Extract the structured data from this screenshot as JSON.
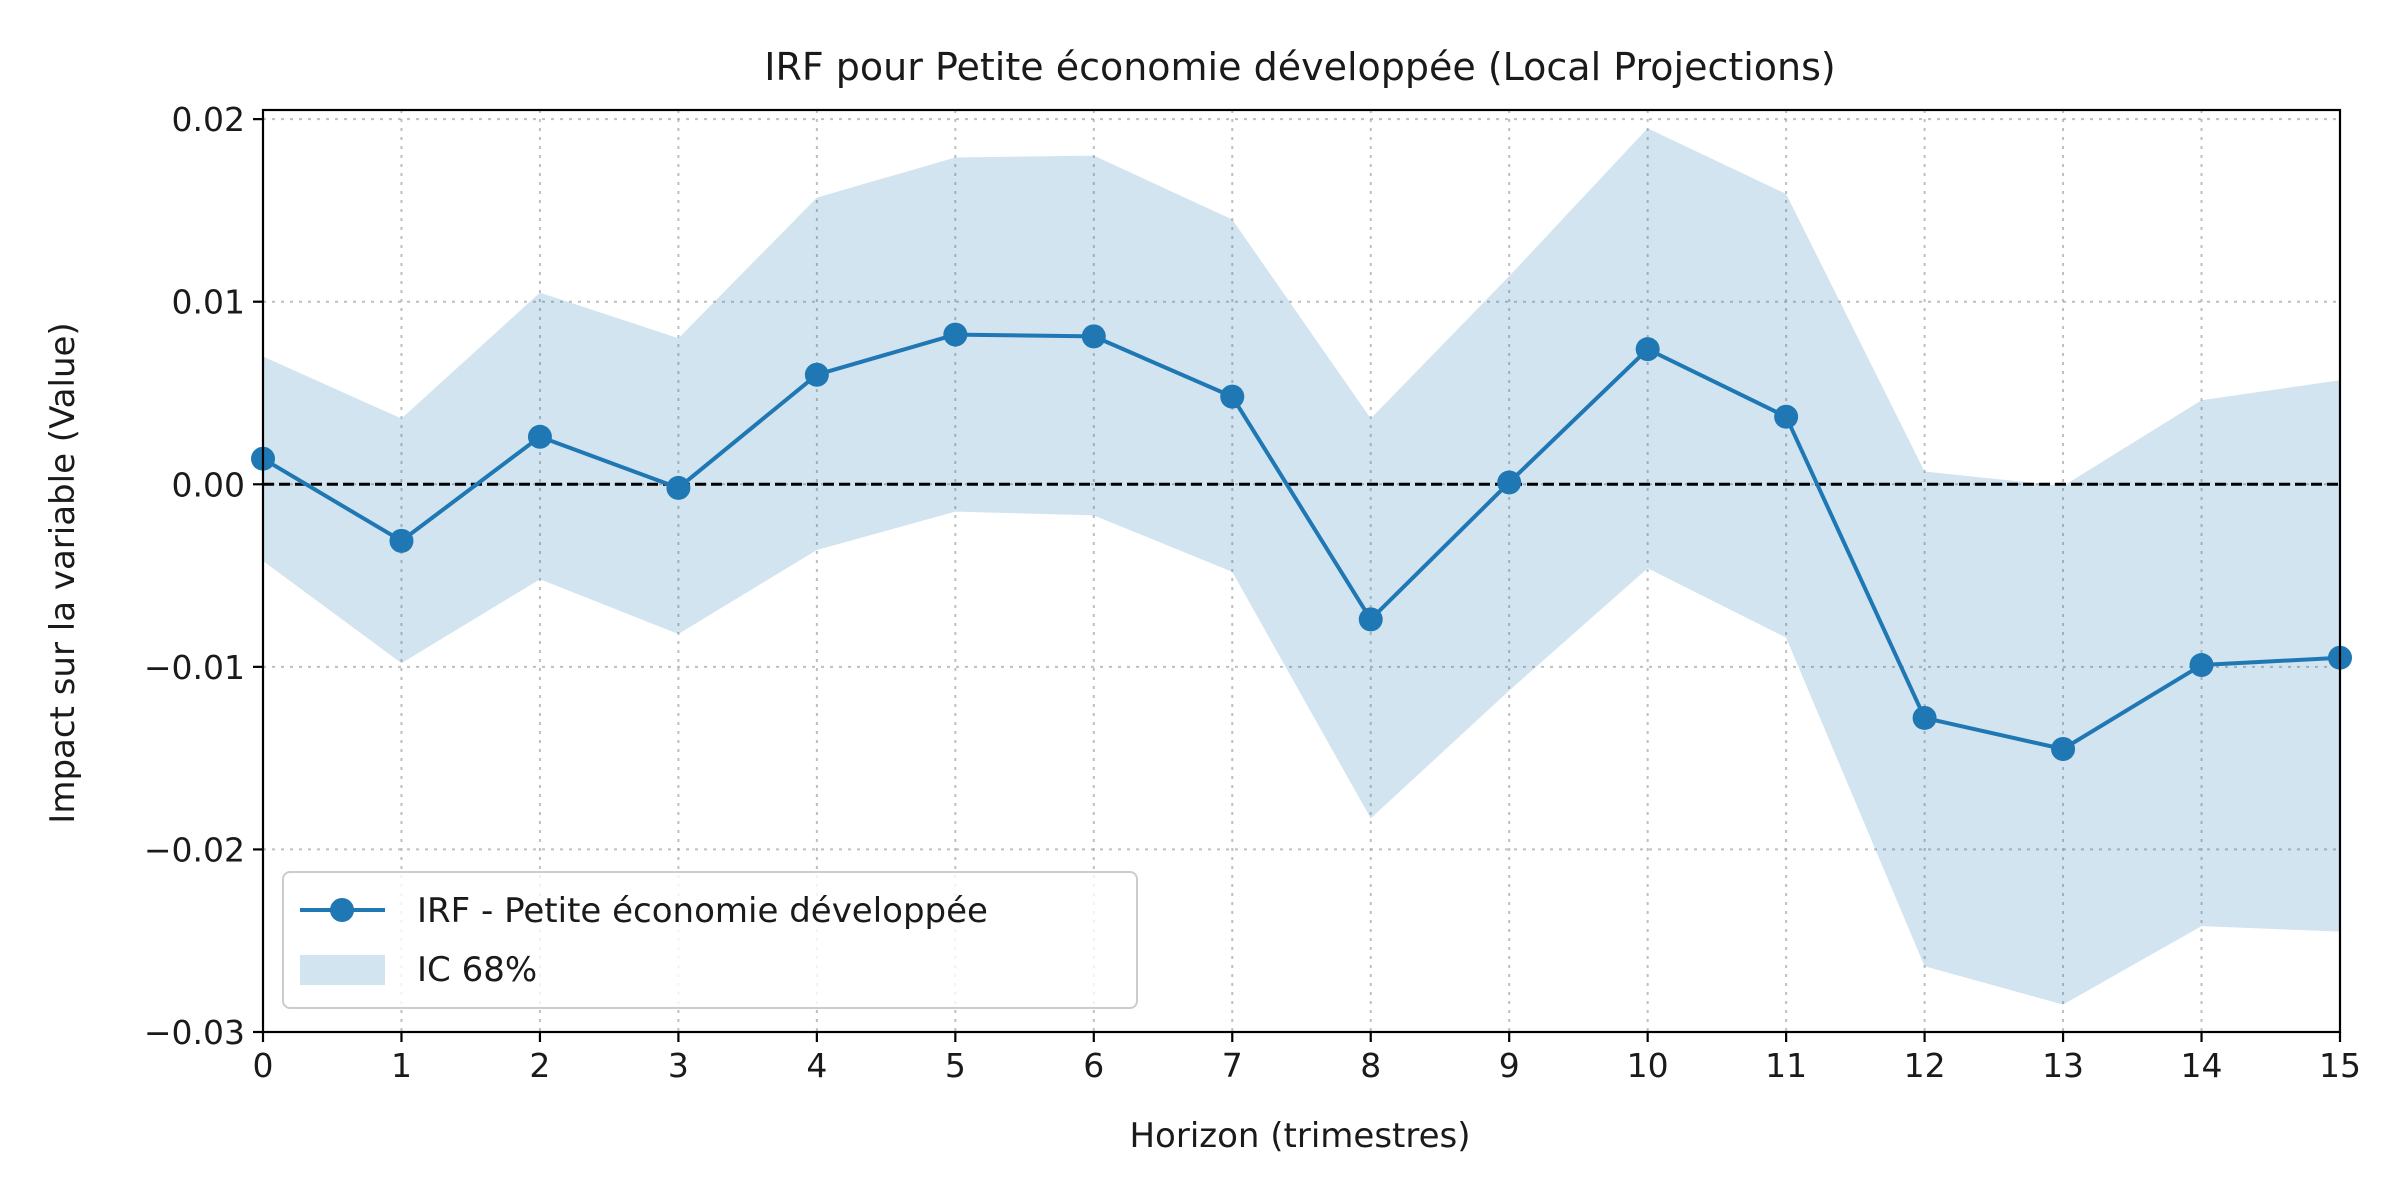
{
  "chart_data": {
    "type": "line",
    "title": "IRF pour Petite économie développée (Local Projections)",
    "xlabel": "Horizon (trimestres)",
    "ylabel": "Impact sur la variable (Value)",
    "x": [
      0,
      1,
      2,
      3,
      4,
      5,
      6,
      7,
      8,
      9,
      10,
      11,
      12,
      13,
      14,
      15
    ],
    "xlim": [
      0,
      15
    ],
    "ylim": [
      -0.03,
      0.0205
    ],
    "x_ticks": [
      0,
      1,
      2,
      3,
      4,
      5,
      6,
      7,
      8,
      9,
      10,
      11,
      12,
      13,
      14,
      15
    ],
    "x_tick_labels": [
      "0",
      "1",
      "2",
      "3",
      "4",
      "5",
      "6",
      "7",
      "8",
      "9",
      "10",
      "11",
      "12",
      "13",
      "14",
      "15"
    ],
    "y_ticks": [
      -0.03,
      -0.02,
      -0.01,
      0.0,
      0.01,
      0.02
    ],
    "y_tick_labels": [
      "−0.03",
      "−0.02",
      "−0.01",
      "0.00",
      "0.01",
      "0.02"
    ],
    "grid": true,
    "zero_line": {
      "value": 0,
      "style": "dashed",
      "color": "#000000"
    },
    "series": [
      {
        "name": "IRF - Petite économie développée",
        "kind": "line-marker",
        "color": "#1f77b4",
        "values": [
          0.0014,
          -0.0031,
          0.0026,
          -0.0002,
          0.006,
          0.0082,
          0.0081,
          0.0048,
          -0.0074,
          0.0001,
          0.0074,
          0.0037,
          -0.0128,
          -0.0145,
          -0.0099,
          -0.0095
        ]
      },
      {
        "name": "IC 68%",
        "kind": "band",
        "color": "#1f77b4",
        "opacity": 0.2,
        "lower": [
          -0.0042,
          -0.0098,
          -0.0052,
          -0.0082,
          -0.0036,
          -0.0015,
          -0.0017,
          -0.0048,
          -0.0183,
          -0.0113,
          -0.0046,
          -0.0084,
          -0.0264,
          -0.0285,
          -0.0242,
          -0.0245
        ],
        "upper": [
          0.007,
          0.0036,
          0.0105,
          0.008,
          0.0157,
          0.0179,
          0.018,
          0.0145,
          0.0036,
          0.0114,
          0.0195,
          0.0159,
          0.0007,
          -0.0001,
          0.0046,
          0.0057
        ]
      }
    ],
    "legend": {
      "placement": "lower-left",
      "entries": [
        "IRF - Petite économie développée",
        "IC 68%"
      ]
    }
  }
}
